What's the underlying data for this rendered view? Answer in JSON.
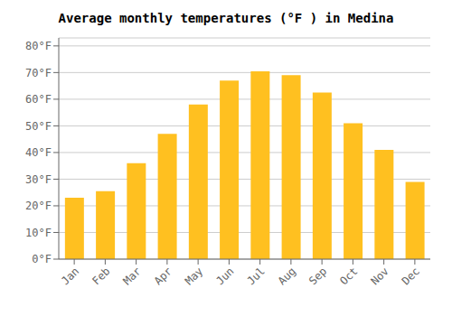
{
  "chart_data": {
    "type": "bar",
    "title": "Average monthly temperatures (°F ) in Medina",
    "categories": [
      "Jan",
      "Feb",
      "Mar",
      "Apr",
      "May",
      "Jun",
      "Jul",
      "Aug",
      "Sep",
      "Oct",
      "Nov",
      "Dec"
    ],
    "values": [
      23,
      25.5,
      36,
      47,
      58,
      67,
      70.5,
      69,
      62.5,
      51,
      41,
      29
    ],
    "color": "#FFC020",
    "ylim": [
      0,
      83
    ],
    "yticks": [
      {
        "value": 0,
        "label": "0°F"
      },
      {
        "value": 10,
        "label": "10°F"
      },
      {
        "value": 20,
        "label": "20°F"
      },
      {
        "value": 30,
        "label": "30°F"
      },
      {
        "value": 40,
        "label": "40°F"
      },
      {
        "value": 50,
        "label": "50°F"
      },
      {
        "value": 60,
        "label": "60°F"
      },
      {
        "value": 70,
        "label": "70°F"
      },
      {
        "value": 80,
        "label": "80°F"
      }
    ],
    "grid": true
  }
}
